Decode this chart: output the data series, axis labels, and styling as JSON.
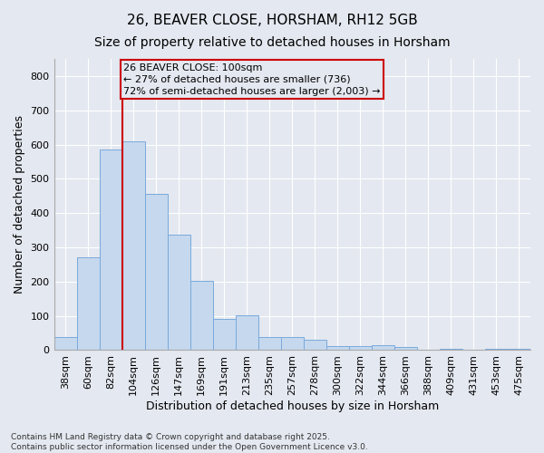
{
  "title1": "26, BEAVER CLOSE, HORSHAM, RH12 5GB",
  "title2": "Size of property relative to detached houses in Horsham",
  "xlabel": "Distribution of detached houses by size in Horsham",
  "ylabel": "Number of detached properties",
  "categories": [
    "38sqm",
    "60sqm",
    "82sqm",
    "104sqm",
    "126sqm",
    "147sqm",
    "169sqm",
    "191sqm",
    "213sqm",
    "235sqm",
    "257sqm",
    "278sqm",
    "300sqm",
    "322sqm",
    "344sqm",
    "366sqm",
    "388sqm",
    "409sqm",
    "431sqm",
    "453sqm",
    "475sqm"
  ],
  "values": [
    38,
    270,
    585,
    610,
    456,
    338,
    202,
    92,
    103,
    38,
    38,
    30,
    12,
    12,
    15,
    10,
    0,
    5,
    0,
    5,
    5
  ],
  "bar_color": "#c5d8ee",
  "bar_edge_color": "#7aaadc",
  "background_color": "#e4e8f0",
  "grid_color": "#ffffff",
  "vline_color": "#cc0000",
  "annotation_text": "26 BEAVER CLOSE: 100sqm\n← 27% of detached houses are smaller (736)\n72% of semi-detached houses are larger (2,003) →",
  "annotation_box_color": "#cc0000",
  "ylim": [
    0,
    850
  ],
  "yticks": [
    0,
    100,
    200,
    300,
    400,
    500,
    600,
    700,
    800
  ],
  "footer": "Contains HM Land Registry data © Crown copyright and database right 2025.\nContains public sector information licensed under the Open Government Licence v3.0.",
  "title_fontsize": 11,
  "subtitle_fontsize": 10,
  "axis_label_fontsize": 9,
  "tick_fontsize": 8,
  "annotation_fontsize": 8,
  "vline_index": 2.5
}
